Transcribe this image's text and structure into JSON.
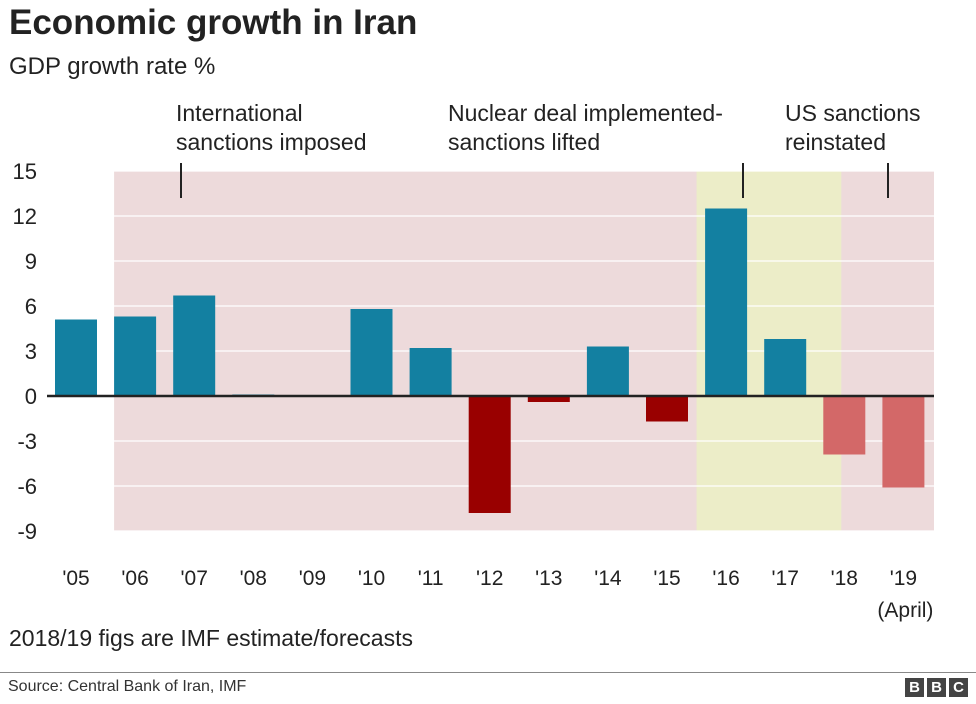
{
  "chart_data": {
    "type": "bar",
    "title": "Economic growth in Iran",
    "subtitle": "GDP growth rate %",
    "categories": [
      "'05",
      "'06",
      "'07",
      "'08",
      "'09",
      "'10",
      "'11",
      "'12",
      "'13",
      "'14",
      "'15",
      "'16",
      "'17",
      "'18",
      "'19"
    ],
    "category_sublabels": {
      "'19": "(April)"
    },
    "values": [
      5.1,
      5.3,
      6.7,
      0.1,
      0.0,
      5.8,
      3.2,
      -7.8,
      -0.4,
      3.3,
      -1.7,
      12.5,
      3.8,
      -3.9,
      -6.1
    ],
    "estimate_categories": [
      "'18",
      "'19"
    ],
    "ylim": [
      -9,
      15
    ],
    "yticks": [
      15,
      12,
      9,
      6,
      3,
      0,
      -3,
      -6,
      -9
    ],
    "grid": true,
    "xlabel": "",
    "ylabel": "",
    "shaded_periods": [
      {
        "label": "sanctions",
        "from": "'06",
        "to": "'19",
        "color": "#eddadb"
      },
      {
        "label": "deal",
        "from": "'16",
        "to": "'18",
        "color": "#ecedc8"
      }
    ],
    "annotations": [
      {
        "line1": "International",
        "line2": "sanctions imposed",
        "at": "'07"
      },
      {
        "line1": "Nuclear deal implemented-",
        "line2": "sanctions lifted",
        "at": "'16"
      },
      {
        "line1": "US sanctions",
        "line2": "reinstated",
        "at": "'19"
      }
    ],
    "colors": {
      "positive": "#1380a1",
      "negative": "#990000",
      "estimate_negative": "#d36868"
    }
  },
  "footnote": "2018/19 figs are IMF estimate/forecasts",
  "source": "Source: Central Bank of Iran, IMF",
  "logo": "BBC"
}
